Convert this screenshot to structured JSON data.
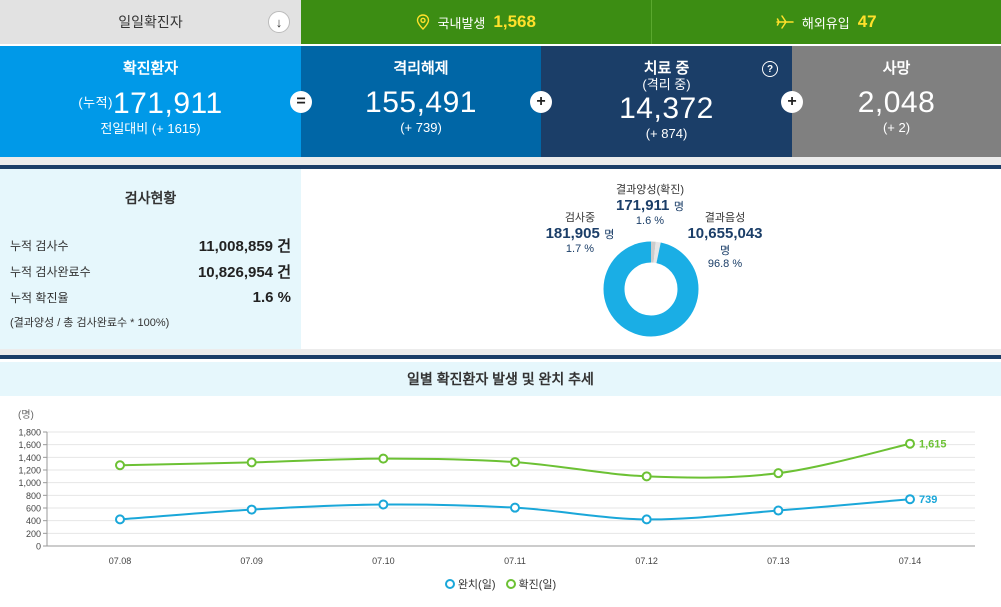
{
  "topbar": {
    "daily_label": "일일확진자",
    "daily_icon": "arrow-down-icon",
    "domestic_label": "국내발생",
    "domestic_value": "1,568",
    "overseas_label": "해외유입",
    "overseas_value": "47"
  },
  "stats": {
    "confirmed": {
      "label": "확진환자",
      "prefix": "(누적)",
      "value": "171,911",
      "delta": "전일대비 (+ 1615)"
    },
    "released": {
      "label": "격리해제",
      "value": "155,491",
      "delta": "(+ 739)"
    },
    "treating": {
      "label": "치료 중",
      "sub_label": "(격리 중)",
      "value": "14,372",
      "delta": "(+ 874)",
      "help": "?"
    },
    "deaths": {
      "label": "사망",
      "value": "2,048",
      "delta": "(+ 2)"
    },
    "operators": {
      "eq": "=",
      "plus1": "+",
      "plus2": "+"
    }
  },
  "tests": {
    "title": "검사현황",
    "rows": [
      {
        "label": "누적 검사수",
        "value": "11,008,859 건"
      },
      {
        "label": "누적 검사완료수",
        "value": "10,826,954 건"
      },
      {
        "label": "누적 확진율",
        "value": "1.6 %"
      }
    ],
    "note": "(결과양성 / 총 검사완료수 * 100%)"
  },
  "donut": {
    "positive": {
      "caption": "결과양성(확진)",
      "number": "171,911",
      "unit": "명",
      "pct": "1.6 %",
      "share": 1.6
    },
    "testing": {
      "caption": "검사중",
      "number": "181,905",
      "unit": "명",
      "pct": "1.7 %",
      "share": 1.7
    },
    "negative": {
      "caption": "결과음성",
      "number": "10,655,043",
      "unit": "명",
      "pct": "96.8 %",
      "share": 96.8
    }
  },
  "chart_title": "일별 확진환자 발생 및 완치 추세",
  "chart_data": {
    "type": "line",
    "ylabel": "(명)",
    "ylim": [
      0,
      1800
    ],
    "yticks": [
      0,
      200,
      400,
      600,
      800,
      1000,
      1200,
      1400,
      1600,
      1800
    ],
    "ytick_labels": [
      "0",
      "200",
      "400",
      "600",
      "800",
      "1,000",
      "1,200",
      "1,400",
      "1,600",
      "1,800"
    ],
    "categories": [
      "07.08",
      "07.09",
      "07.10",
      "07.11",
      "07.12",
      "07.13",
      "07.14"
    ],
    "series": [
      {
        "name": "완치(일)",
        "color": "#1aa7d9",
        "values": [
          420,
          575,
          655,
          605,
          420,
          560,
          739
        ],
        "last_label": "739"
      },
      {
        "name": "확진(일)",
        "color": "#6cc134",
        "values": [
          1275,
          1320,
          1380,
          1325,
          1100,
          1150,
          1615
        ],
        "last_label": "1,615"
      }
    ]
  },
  "colors": {
    "green_bar": "#3c8d13",
    "confirmed": "#0099e8",
    "released": "#0066a6",
    "treating": "#1b3e68",
    "deaths": "#808080",
    "donut_negative": "#1aaee5",
    "donut_positive": "#cccccc"
  }
}
